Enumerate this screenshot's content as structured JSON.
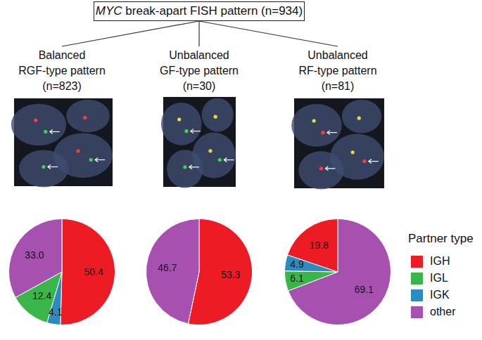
{
  "header": {
    "title": "MYC break-apart FISH pattern (n=934)",
    "title_italic": "MYC"
  },
  "legend_title": "Partner type",
  "legend_entries": [
    {
      "name": "IGH",
      "color": "#ed1c24"
    },
    {
      "name": "IGL",
      "color": "#3ab54a"
    },
    {
      "name": "IGK",
      "color": "#2e8bc0"
    },
    {
      "name": "other",
      "color": "#a650b0"
    }
  ],
  "chart_data": [
    {
      "type": "pie",
      "title": [
        "Balanced",
        "RGF-type pattern",
        "(n=823)"
      ],
      "categories": [
        "IGH",
        "IGK",
        "IGL",
        "other"
      ],
      "values": [
        50.4,
        4.1,
        12.4,
        33.0
      ],
      "value_labels": [
        "50.4",
        "4.1",
        "12.4",
        "33.0"
      ],
      "colors": [
        "#ed1c24",
        "#2e8bc0",
        "#3ab54a",
        "#a650b0"
      ],
      "data_labels": true
    },
    {
      "type": "pie",
      "title": [
        "Unbalanced",
        "GF-type pattern",
        "(n=30)"
      ],
      "categories": [
        "IGH",
        "other"
      ],
      "values": [
        53.3,
        46.7
      ],
      "value_labels": [
        "53.3",
        "46.7"
      ],
      "colors": [
        "#ed1c24",
        "#a650b0"
      ],
      "data_labels": true
    },
    {
      "type": "pie",
      "title": [
        "Unbalanced",
        "RF-type pattern",
        "(n=81)"
      ],
      "categories": [
        "other",
        "IGL",
        "IGK",
        "IGH"
      ],
      "values": [
        69.1,
        6.1,
        4.9,
        19.8
      ],
      "value_labels": [
        "69.1",
        "6.1",
        "4.9",
        "19.8"
      ],
      "colors": [
        "#a650b0",
        "#3ab54a",
        "#2e8bc0",
        "#ed1c24"
      ],
      "data_labels": true
    }
  ]
}
